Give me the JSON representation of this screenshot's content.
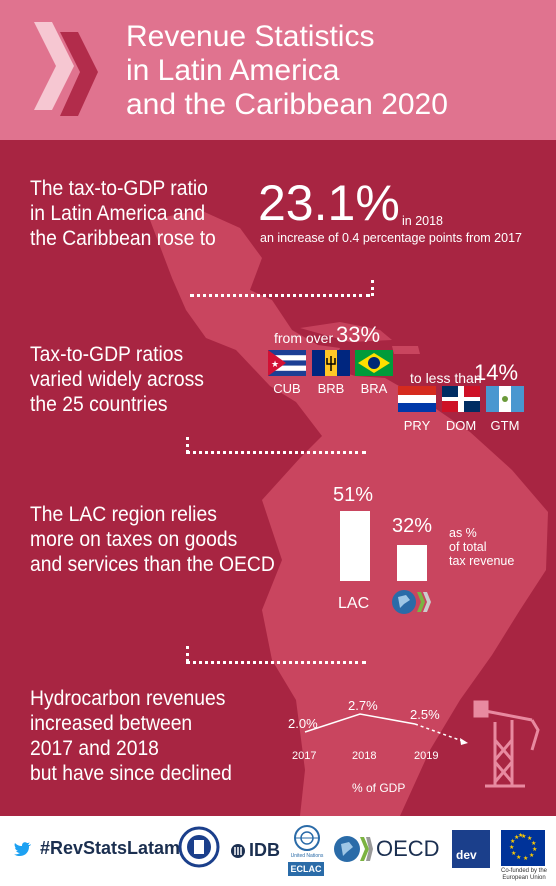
{
  "header": {
    "title_line1": "Revenue Statistics",
    "title_line2": "in Latin America",
    "title_line3": "and the Caribbean 2020"
  },
  "section1": {
    "text_line1": "The tax-to-GDP ratio",
    "text_line2": "in Latin America and",
    "text_line3": "the Caribbean rose to",
    "value": "23.1%",
    "year_note": "in 2018",
    "increase_note": "an increase of 0.4 percentage points from 2017"
  },
  "section2": {
    "text_line1": "Tax-to-GDP ratios",
    "text_line2": "varied widely across",
    "text_line3": "the 25 countries",
    "high_prefix": "from over",
    "high_value": "33%",
    "high_countries": [
      "CUB",
      "BRB",
      "BRA"
    ],
    "low_prefix": "to less than",
    "low_value": "14%",
    "low_countries": [
      "PRY",
      "DOM",
      "GTM"
    ]
  },
  "section3": {
    "text_line1": "The LAC region relies",
    "text_line2": "more on taxes on goods",
    "text_line3": "and services than the OECD",
    "lac_value": "51%",
    "oecd_value": "32%",
    "lac_label": "LAC",
    "unit_line1": "as %",
    "unit_line2": "of total",
    "unit_line3": "tax revenue"
  },
  "section4": {
    "text_line1": "Hydrocarbon revenues",
    "text_line2": "increased between",
    "text_line3": "2017 and 2018",
    "text_line4": "but have since declined",
    "values": [
      "2.0%",
      "2.7%",
      "2.5%"
    ],
    "years": [
      "2017",
      "2018",
      "2019"
    ],
    "unit": "% of GDP"
  },
  "footer": {
    "hashtag": "#RevStatsLatam",
    "idb": "IDB",
    "un": "United Nations",
    "eclac": "ECLAC",
    "oecd": "OECD",
    "dev": "dev",
    "eu_note_line1": "Co-funded by the",
    "eu_note_line2": "European Union"
  },
  "colors": {
    "background": "#a82542",
    "header": "#e0738f",
    "map": "#c9455f"
  }
}
